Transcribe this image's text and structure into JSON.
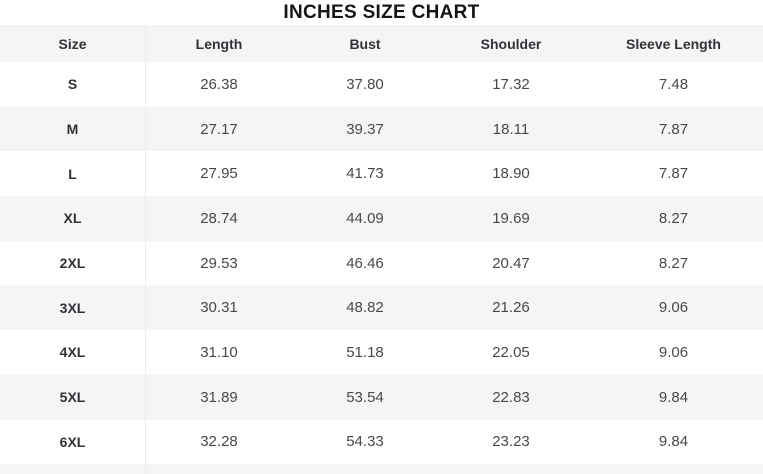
{
  "title": "INCHES SIZE CHART",
  "chart_data": {
    "type": "table",
    "title": "INCHES SIZE CHART",
    "columns": [
      "Size",
      "Length",
      "Bust",
      "Shoulder",
      "Sleeve Length"
    ],
    "rows": [
      [
        "S",
        "26.38",
        "37.80",
        "17.32",
        "7.48"
      ],
      [
        "M",
        "27.17",
        "39.37",
        "18.11",
        "7.87"
      ],
      [
        "L",
        "27.95",
        "41.73",
        "18.90",
        "7.87"
      ],
      [
        "XL",
        "28.74",
        "44.09",
        "19.69",
        "8.27"
      ],
      [
        "2XL",
        "29.53",
        "46.46",
        "20.47",
        "8.27"
      ],
      [
        "3XL",
        "30.31",
        "48.82",
        "21.26",
        "9.06"
      ],
      [
        "4XL",
        "31.10",
        "51.18",
        "22.05",
        "9.06"
      ],
      [
        "5XL",
        "31.89",
        "53.54",
        "22.83",
        "9.84"
      ],
      [
        "6XL",
        "32.28",
        "54.33",
        "23.23",
        "9.84"
      ]
    ],
    "layout": {
      "row_striping": "alternating",
      "units": "inches"
    }
  },
  "colors": {
    "row_stripe": "#f5f5f6",
    "divider": "#ececec",
    "title_text": "#141619",
    "header_text": "#2f3337",
    "value_text": "#46494c"
  }
}
